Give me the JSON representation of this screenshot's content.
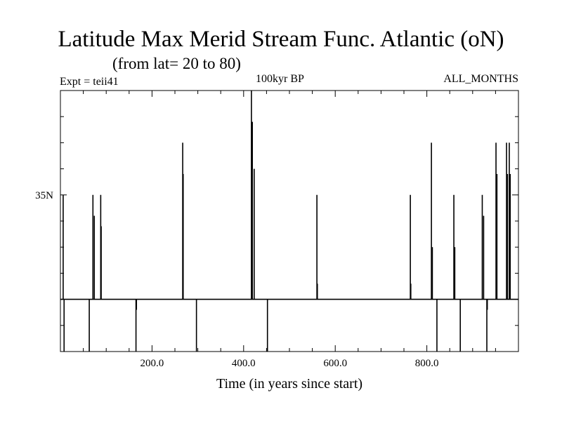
{
  "chart_data": {
    "type": "line",
    "title": "Latitude Max Merid Stream Func. Atlantic (oN)",
    "subtitle": "(from lat= 20 to 80)",
    "annotations": {
      "left": "Expt = teii41",
      "center": "100kyr BP",
      "right": "ALL_MONTHS"
    },
    "xlabel": "Time (in years since start)",
    "ylabel": "",
    "xlim": [
      0,
      1000
    ],
    "ylim": [
      20,
      45
    ],
    "baseline": 25,
    "x_tick_values": [
      200,
      400,
      600,
      800
    ],
    "x_tick_labels": [
      "200.0",
      "400.0",
      "600.0",
      "800.0"
    ],
    "y_tick_values": [
      35
    ],
    "y_tick_labels": [
      "35N"
    ],
    "grid": false,
    "legend": "none",
    "series": [
      {
        "color": "#000000",
        "spikes": [
          {
            "x": 6,
            "y": 35
          },
          {
            "x": 8,
            "y": 20
          },
          {
            "x": 63,
            "y": 20
          },
          {
            "x": 71,
            "y": 35
          },
          {
            "x": 74,
            "y": 33
          },
          {
            "x": 88,
            "y": 35
          },
          {
            "x": 89,
            "y": 32
          },
          {
            "x": 165,
            "y": 20
          },
          {
            "x": 166,
            "y": 24
          },
          {
            "x": 267,
            "y": 40
          },
          {
            "x": 268,
            "y": 37
          },
          {
            "x": 297,
            "y": 20
          },
          {
            "x": 417,
            "y": 45
          },
          {
            "x": 419,
            "y": 42
          },
          {
            "x": 423,
            "y": 37.5
          },
          {
            "x": 452,
            "y": 20
          },
          {
            "x": 560,
            "y": 35
          },
          {
            "x": 561,
            "y": 26.5
          },
          {
            "x": 764,
            "y": 35
          },
          {
            "x": 765,
            "y": 26.5
          },
          {
            "x": 810,
            "y": 40
          },
          {
            "x": 812,
            "y": 30
          },
          {
            "x": 822,
            "y": 20
          },
          {
            "x": 859,
            "y": 35
          },
          {
            "x": 861,
            "y": 30
          },
          {
            "x": 873,
            "y": 20
          },
          {
            "x": 921,
            "y": 35
          },
          {
            "x": 924,
            "y": 33
          },
          {
            "x": 931,
            "y": 20
          },
          {
            "x": 932,
            "y": 24
          },
          {
            "x": 951,
            "y": 40
          },
          {
            "x": 953,
            "y": 37
          },
          {
            "x": 974,
            "y": 40
          },
          {
            "x": 976,
            "y": 37
          },
          {
            "x": 980,
            "y": 40
          },
          {
            "x": 982,
            "y": 37
          }
        ]
      }
    ]
  }
}
